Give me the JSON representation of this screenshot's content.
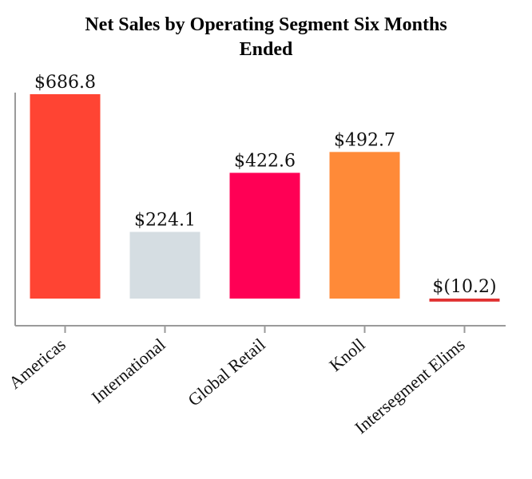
{
  "chart_data": {
    "type": "bar",
    "title": "Net Sales by Operating Segment Six Months Ended",
    "title_lines": [
      "Net Sales by Operating Segment Six Months",
      "Ended"
    ],
    "categories": [
      "Americas",
      "International",
      "Global Retail",
      "Knoll",
      "Intersegment Elims"
    ],
    "values": [
      686.8,
      224.1,
      422.6,
      492.7,
      -10.2
    ],
    "data_labels": [
      "$686.8",
      "$224.1",
      "$422.6",
      "$492.7",
      "$(10.2)"
    ],
    "colors": [
      "#ff4433",
      "#d5dde2",
      "#ff0055",
      "#ff8a38",
      "#e03030"
    ],
    "axis_color": "#9a9a9a",
    "xlabel": "",
    "ylabel": "",
    "ylim": [
      -95,
      700
    ],
    "grid": false,
    "legend": "none"
  }
}
